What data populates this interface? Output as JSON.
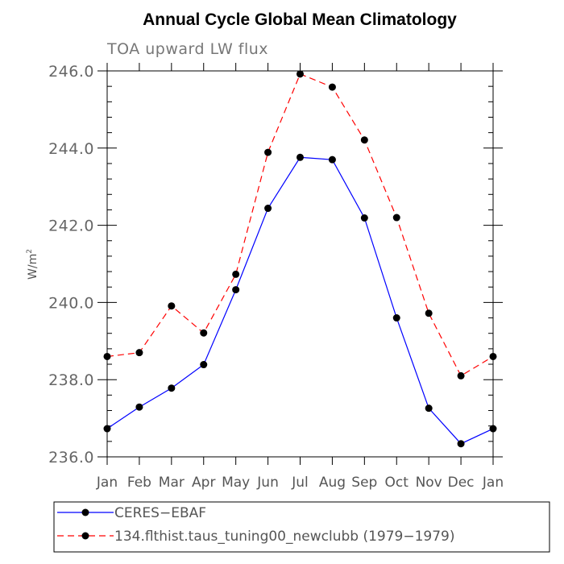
{
  "chart_data": {
    "type": "line",
    "title": "Annual Cycle Global Mean Climatology",
    "subtitle": "TOA upward LW flux",
    "ylabel": "W/m",
    "ylabel_sup": "2",
    "xlabel": "",
    "ylim": [
      236.0,
      246.0
    ],
    "yticks": [
      236.0,
      238.0,
      240.0,
      242.0,
      244.0,
      246.0
    ],
    "ytick_labels": [
      "236.0",
      "238.0",
      "240.0",
      "242.0",
      "244.0",
      "246.0"
    ],
    "categories": [
      "Jan",
      "Feb",
      "Mar",
      "Apr",
      "May",
      "Jun",
      "Jul",
      "Aug",
      "Sep",
      "Oct",
      "Nov",
      "Dec",
      "Jan"
    ],
    "grid": false,
    "legend_position": "bottom",
    "series": [
      {
        "name": "CERES−EBAF",
        "color": "#0000ff",
        "dash": "solid",
        "values": [
          236.73,
          237.29,
          237.78,
          238.39,
          240.33,
          242.44,
          243.76,
          243.7,
          242.19,
          239.6,
          237.26,
          236.34,
          236.73
        ]
      },
      {
        "name": "134.flthist.taus_tuning00_newclubb (1979−1979)",
        "color": "#ff0000",
        "dash": "dashed",
        "values": [
          238.6,
          238.7,
          239.91,
          239.21,
          240.73,
          243.89,
          245.92,
          245.58,
          244.21,
          242.2,
          239.72,
          238.1,
          238.6
        ]
      }
    ]
  }
}
